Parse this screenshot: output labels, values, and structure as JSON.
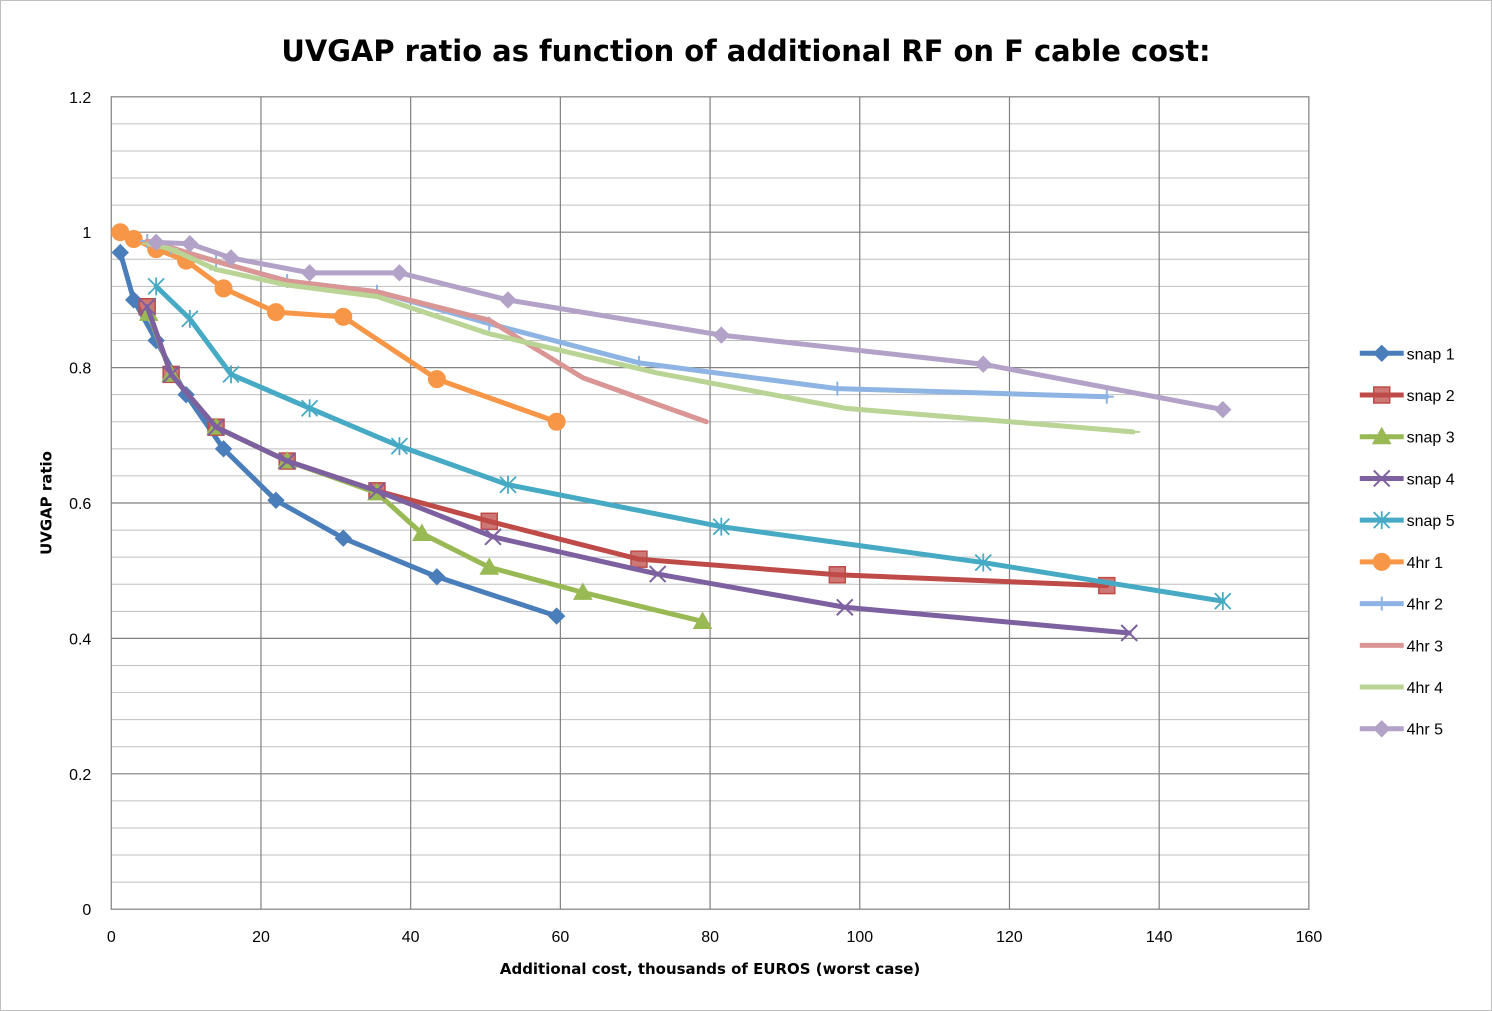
{
  "chart_data": {
    "type": "line",
    "title": "UVGAP ratio as function of additional RF on F cable cost:",
    "xlabel": "Additional cost, thousands of EUROS (worst case)",
    "ylabel": "UVGAP ratio",
    "xlim": [
      0,
      160
    ],
    "ylim": [
      0,
      1.2
    ],
    "xticks": [
      "0",
      "20",
      "40",
      "60",
      "80",
      "100",
      "120",
      "140",
      "160"
    ],
    "yticks": [
      "0",
      "0.2",
      "0.4",
      "0.6",
      "0.8",
      "1",
      "1.2"
    ],
    "grid": true,
    "legend_position": "right",
    "series": [
      {
        "name": "snap 1",
        "color": "#4a7ebb",
        "marker": "diamond",
        "x": [
          1.2,
          3,
          6,
          10,
          15,
          22,
          31,
          43.5,
          59.5
        ],
        "y": [
          0.97,
          0.9,
          0.84,
          0.76,
          0.68,
          0.604,
          0.548,
          0.491,
          0.433
        ]
      },
      {
        "name": "snap 2",
        "color": "#be4b48",
        "marker": "square",
        "x": [
          4.8,
          8,
          14,
          23.5,
          35.5,
          50.5,
          70.5,
          97,
          133
        ],
        "y": [
          0.89,
          0.79,
          0.712,
          0.662,
          0.618,
          0.573,
          0.517,
          0.494,
          0.478
        ]
      },
      {
        "name": "snap 3",
        "color": "#98b954",
        "marker": "triangle",
        "x": [
          5,
          8,
          14,
          23.5,
          35.5,
          41.5,
          50.5,
          63,
          79
        ],
        "y": [
          0.88,
          0.79,
          0.712,
          0.662,
          0.615,
          0.555,
          0.505,
          0.468,
          0.425
        ]
      },
      {
        "name": "snap 4",
        "color": "#7d60a0",
        "marker": "x",
        "x": [
          4.8,
          8,
          14,
          23.5,
          35.5,
          51,
          73,
          98,
          136
        ],
        "y": [
          0.89,
          0.79,
          0.712,
          0.662,
          0.618,
          0.55,
          0.495,
          0.446,
          0.408
        ]
      },
      {
        "name": "snap 5",
        "color": "#46aac5",
        "marker": "asterisk",
        "x": [
          6,
          10.5,
          16,
          26.5,
          38.5,
          53,
          81.5,
          116.5,
          148.5
        ],
        "y": [
          0.92,
          0.872,
          0.79,
          0.74,
          0.684,
          0.627,
          0.565,
          0.512,
          0.455
        ]
      },
      {
        "name": "4hr 1",
        "color": "#f79646",
        "marker": "circle",
        "x": [
          1.2,
          3,
          6,
          10,
          15,
          22,
          31,
          43.5,
          59.5
        ],
        "y": [
          1.0,
          0.99,
          0.975,
          0.958,
          0.917,
          0.882,
          0.875,
          0.783,
          0.72
        ]
      },
      {
        "name": "4hr 2",
        "color": "#8eb4e3",
        "marker": "plus",
        "x": [
          4.8,
          8,
          14,
          23.5,
          35.5,
          50.5,
          70.5,
          97,
          133
        ],
        "y": [
          0.987,
          0.977,
          0.957,
          0.928,
          0.912,
          0.865,
          0.807,
          0.769,
          0.757
        ]
      },
      {
        "name": "4hr 3",
        "color": "#d99694",
        "marker": "none",
        "x": [
          4.8,
          8,
          14,
          23.5,
          35.5,
          50.5,
          63,
          79.5
        ],
        "y": [
          0.987,
          0.977,
          0.957,
          0.928,
          0.912,
          0.87,
          0.785,
          0.72
        ]
      },
      {
        "name": "4hr 4",
        "color": "#b9d494",
        "marker": "dash",
        "x": [
          5,
          8,
          14,
          23.5,
          35.5,
          50.5,
          73,
          98,
          136.5
        ],
        "y": [
          0.983,
          0.975,
          0.945,
          0.922,
          0.905,
          0.85,
          0.792,
          0.74,
          0.705
        ]
      },
      {
        "name": "4hr 5",
        "color": "#b3a2c7",
        "marker": "diamond",
        "x": [
          6,
          10.5,
          16,
          26.5,
          38.5,
          53,
          81.5,
          116.5,
          148.5
        ],
        "y": [
          0.985,
          0.983,
          0.962,
          0.94,
          0.94,
          0.9,
          0.848,
          0.805,
          0.738
        ]
      }
    ]
  }
}
